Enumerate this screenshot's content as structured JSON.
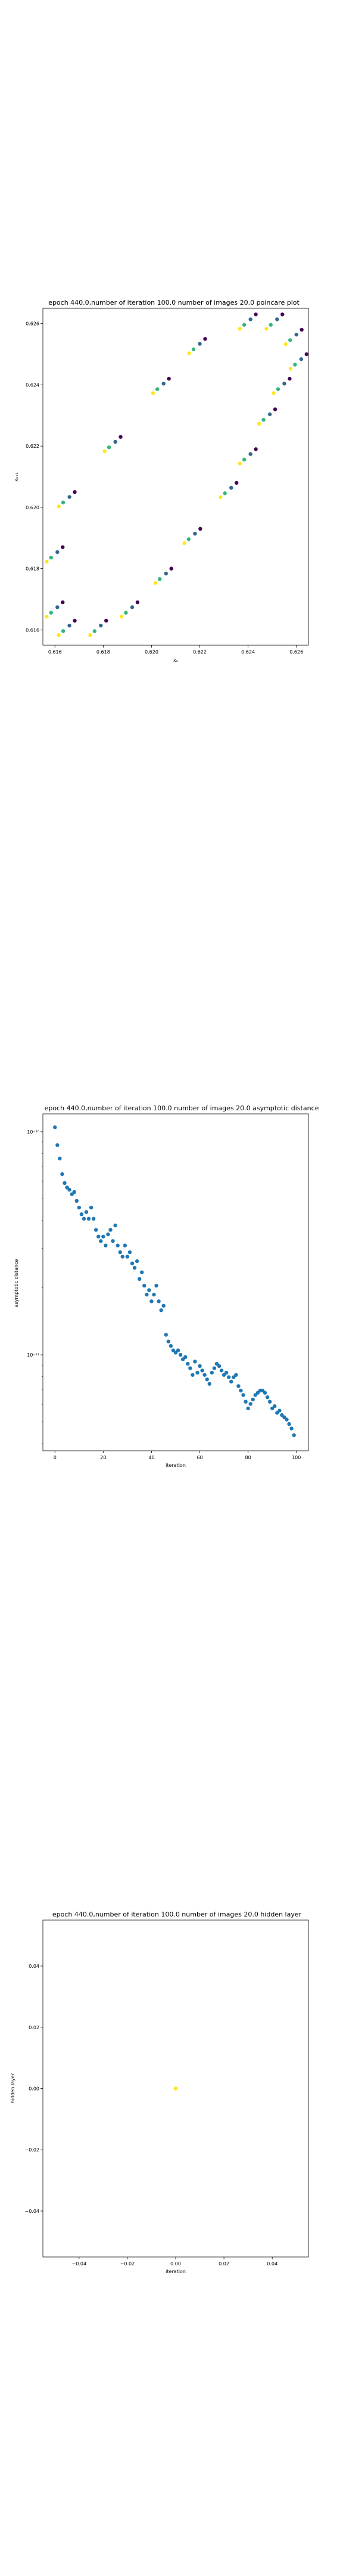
{
  "chart_data": [
    {
      "type": "scatter",
      "title": "epoch 440.0,number of iteration 100.0  number of images 20.0 poincare plot",
      "xlabel": "xₙ",
      "ylabel": "xₙ₊₁",
      "xlim": [
        0.6155,
        0.6265
      ],
      "ylim": [
        0.6155,
        0.6265
      ],
      "xticks": [
        "0.616",
        "0.618",
        "0.620",
        "0.622",
        "0.624",
        "0.626"
      ],
      "yticks": [
        "0.616",
        "0.618",
        "0.620",
        "0.622",
        "0.624",
        "0.626"
      ],
      "grid": false,
      "colormap": [
        "#440154",
        "#31688e",
        "#35b779",
        "#fde725"
      ],
      "clusters": [
        {
          "x": 0.6159,
          "y": 0.6184
        },
        {
          "x": 0.6159,
          "y": 0.6166
        },
        {
          "x": 0.6164,
          "y": 0.6202
        },
        {
          "x": 0.6164,
          "y": 0.616
        },
        {
          "x": 0.6177,
          "y": 0.616
        },
        {
          "x": 0.6183,
          "y": 0.622
        },
        {
          "x": 0.619,
          "y": 0.6166
        },
        {
          "x": 0.6203,
          "y": 0.6239
        },
        {
          "x": 0.6204,
          "y": 0.6177
        },
        {
          "x": 0.6218,
          "y": 0.6252
        },
        {
          "x": 0.6216,
          "y": 0.619
        },
        {
          "x": 0.6231,
          "y": 0.6205
        },
        {
          "x": 0.6239,
          "y": 0.626
        },
        {
          "x": 0.6239,
          "y": 0.6216
        },
        {
          "x": 0.625,
          "y": 0.626
        },
        {
          "x": 0.6247,
          "y": 0.6229
        },
        {
          "x": 0.6258,
          "y": 0.6255
        },
        {
          "x": 0.6253,
          "y": 0.6239
        },
        {
          "x": 0.626,
          "y": 0.6247
        }
      ]
    },
    {
      "type": "scatter",
      "title": "epoch 440.0,number of iteration 100.0  number of images 20.0 asymptotic distance",
      "xlabel": "iteration",
      "ylabel": "asymptotic distance",
      "yscale": "log",
      "xlim": [
        -5,
        105
      ],
      "ylim_log10": [
        -11.43,
        -9.92
      ],
      "xticks": [
        0,
        20,
        40,
        60,
        80,
        100
      ],
      "yticks": [
        {
          "label": "10⁻¹⁰",
          "exp": -10
        },
        {
          "label": "10⁻¹¹",
          "exp": -11
        }
      ],
      "color": "#1f77b4",
      "x_start": 0,
      "log10_values": [
        -9.98,
        -10.06,
        -10.12,
        -10.19,
        -10.23,
        -10.25,
        -10.26,
        -10.28,
        -10.27,
        -10.31,
        -10.34,
        -10.37,
        -10.39,
        -10.36,
        -10.39,
        -10.34,
        -10.39,
        -10.44,
        -10.47,
        -10.49,
        -10.47,
        -10.51,
        -10.46,
        -10.44,
        -10.49,
        -10.42,
        -10.51,
        -10.54,
        -10.56,
        -10.51,
        -10.56,
        -10.54,
        -10.59,
        -10.61,
        -10.58,
        -10.66,
        -10.63,
        -10.69,
        -10.73,
        -10.71,
        -10.76,
        -10.73,
        -10.69,
        -10.76,
        -10.8,
        -10.78,
        -10.91,
        -10.94,
        -10.96,
        -10.98,
        -10.99,
        -10.98,
        -11.0,
        -11.02,
        -11.01,
        -11.04,
        -11.06,
        -11.09,
        -11.03,
        -11.08,
        -11.05,
        -11.07,
        -11.09,
        -11.11,
        -11.13,
        -11.08,
        -11.06,
        -11.04,
        -11.05,
        -11.07,
        -11.09,
        -11.08,
        -11.1,
        -11.12,
        -11.1,
        -11.09,
        -11.14,
        -11.16,
        -11.18,
        -11.21,
        -11.24,
        -11.22,
        -11.2,
        -11.18,
        -11.17,
        -11.16,
        -11.16,
        -11.17,
        -11.19,
        -11.21,
        -11.24,
        -11.23,
        -11.26,
        -11.25,
        -11.27,
        -11.28,
        -11.29,
        -11.31,
        -11.33,
        -11.36
      ]
    },
    {
      "type": "scatter",
      "title": "epoch 440.0,number of iteration 100.0  number of images 20.0 hidden layer",
      "xlabel": "iteration",
      "ylabel": "hidden layer",
      "xlim": [
        -0.055,
        0.055
      ],
      "ylim": [
        -0.055,
        0.055
      ],
      "xticks": [
        "−0.04",
        "−0.02",
        "0.00",
        "0.02",
        "0.04"
      ],
      "yticks": [
        "−0.04",
        "−0.02",
        "0.00",
        "0.02",
        "0.04"
      ],
      "color": "#fde725",
      "points": [
        {
          "x": 0.0,
          "y": 0.0
        }
      ]
    }
  ]
}
